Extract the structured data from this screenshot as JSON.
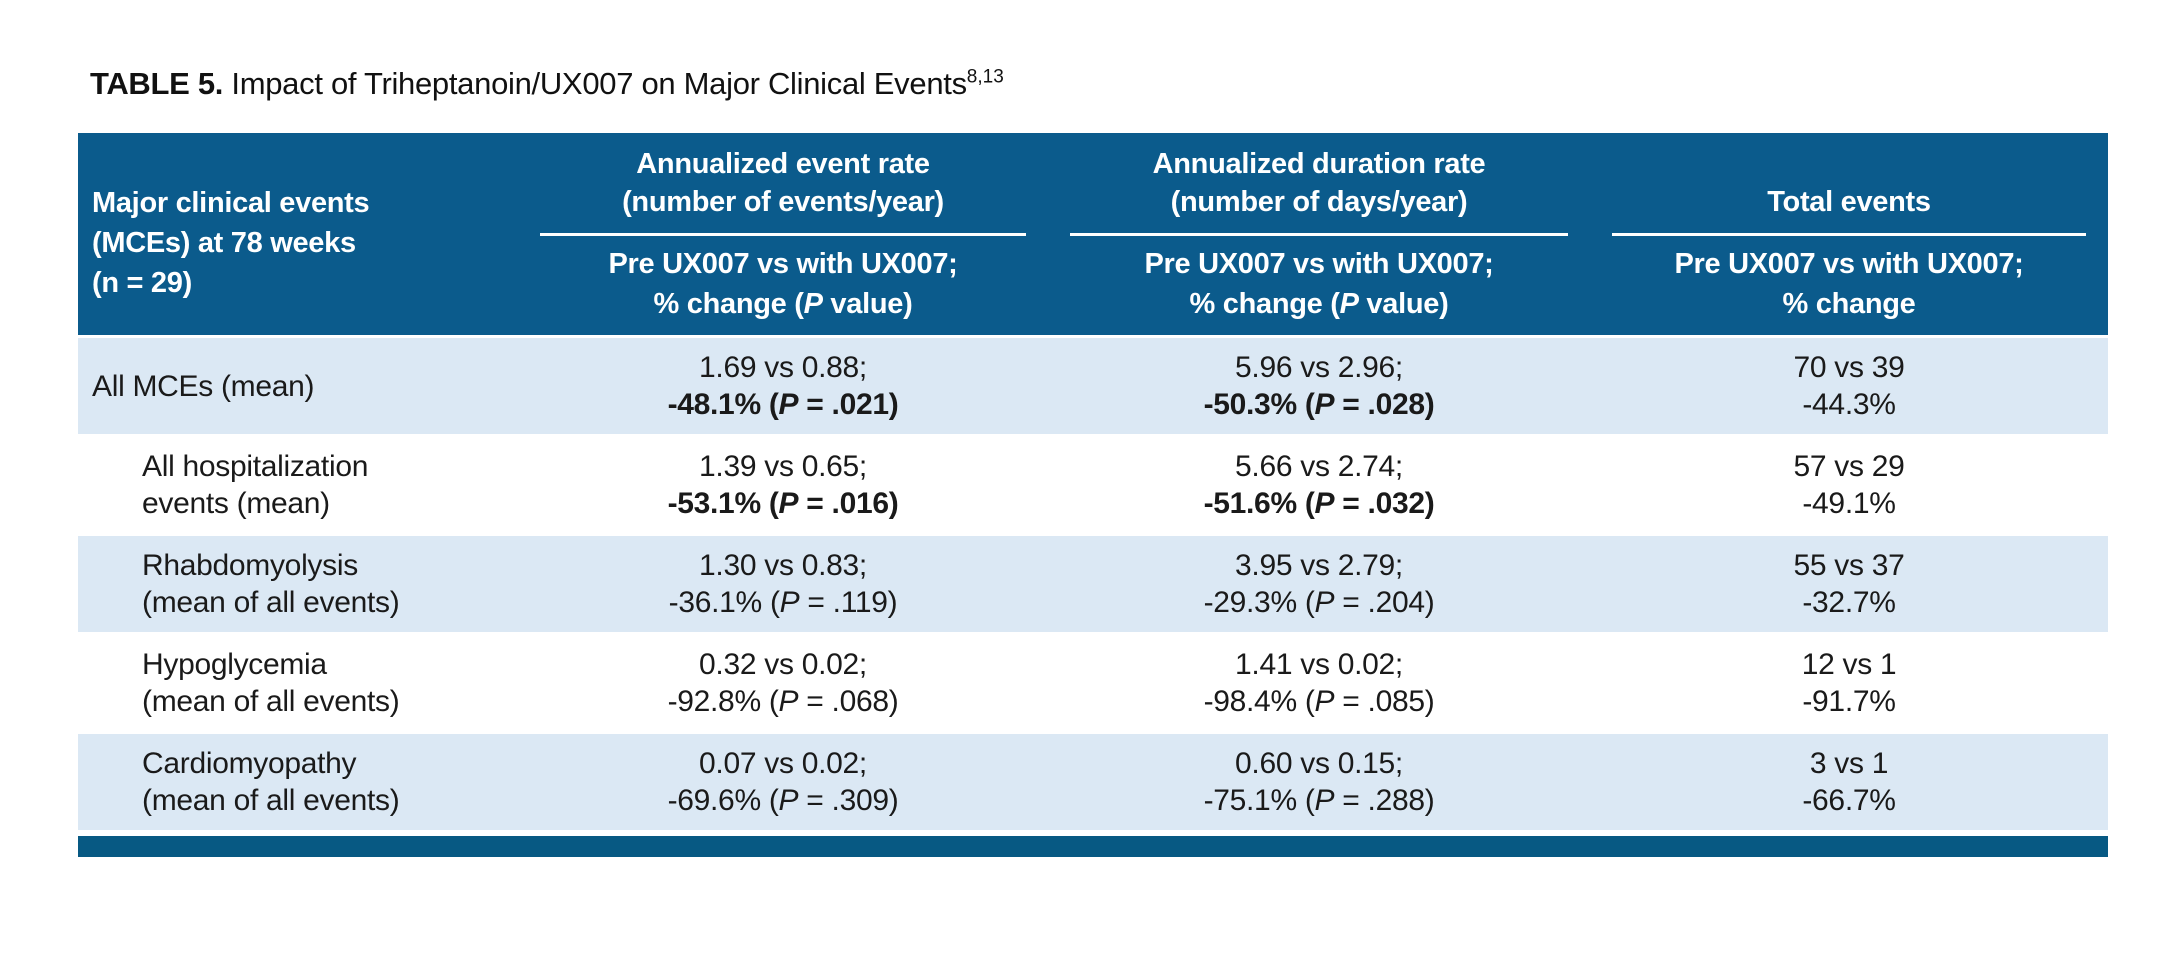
{
  "title": {
    "label": "TABLE 5.",
    "text": " Impact of Triheptanoin/UX007 on Major Clinical Events",
    "superscript": "8,13"
  },
  "colors": {
    "header_bg": "#0b5b8c",
    "row_alt_bg": "#dbe8f4",
    "bottom_bar": "#075983",
    "header_text": "#ffffff",
    "body_text": "#1a1a1a"
  },
  "header": {
    "row_header_lines": [
      "Major clinical events",
      "(MCEs) at 78 weeks",
      "(n = 29)"
    ],
    "columns": [
      {
        "group_line1": "Annualized event rate",
        "group_line2": "(number of events/year)",
        "sub_line1": "Pre UX007 vs with UX007;",
        "sub2_pre": "% change (",
        "sub2_p": "P",
        "sub2_post": " value)"
      },
      {
        "group_line1": "Annualized duration rate",
        "group_line2": "(number of days/year)",
        "sub_line1": "Pre UX007 vs with UX007;",
        "sub2_pre": "% change (",
        "sub2_p": "P",
        "sub2_post": " value)"
      },
      {
        "group_line1": "Total events",
        "group_line2": "",
        "sub_line1": "Pre UX007 vs with UX007;",
        "sub2_pre": "% change",
        "sub2_p": "",
        "sub2_post": ""
      }
    ]
  },
  "rows": [
    {
      "label_line1": "All MCEs (mean)",
      "label_line2": "",
      "event_rate": {
        "line1": "1.69 vs 0.88;",
        "pre": "-48.1% (",
        "p": "P",
        "post": " = .021)"
      },
      "duration_rate": {
        "line1": "5.96 vs 2.96;",
        "pre": "-50.3% (",
        "p": "P",
        "post": " = .028)"
      },
      "total": {
        "line1": "70 vs 39",
        "line2": "-44.3%"
      }
    },
    {
      "label_line1": "All hospitalization",
      "label_line2": "events (mean)",
      "event_rate": {
        "line1": "1.39 vs 0.65;",
        "pre": "-53.1% (",
        "p": "P",
        "post": " = .016)"
      },
      "duration_rate": {
        "line1": "5.66 vs 2.74;",
        "pre": "-51.6% (",
        "p": "P",
        "post": " = .032)"
      },
      "total": {
        "line1": "57 vs 29",
        "line2": "-49.1%"
      }
    },
    {
      "label_line1": "Rhabdomyolysis",
      "label_line2": "(mean of all events)",
      "event_rate": {
        "line1": "1.30 vs 0.83;",
        "pre": "-36.1% (",
        "p": "P",
        "post": " = .119)"
      },
      "duration_rate": {
        "line1": "3.95 vs 2.79;",
        "pre": "-29.3% (",
        "p": "P",
        "post": " = .204)"
      },
      "total": {
        "line1": "55 vs 37",
        "line2": "-32.7%"
      }
    },
    {
      "label_line1": "Hypoglycemia",
      "label_line2": "(mean of all events)",
      "event_rate": {
        "line1": "0.32 vs 0.02;",
        "pre": "-92.8% (",
        "p": "P",
        "post": " = .068)"
      },
      "duration_rate": {
        "line1": "1.41 vs 0.02;",
        "pre": "-98.4% (",
        "p": "P",
        "post": " = .085)"
      },
      "total": {
        "line1": "12 vs 1",
        "line2": "-91.7%"
      }
    },
    {
      "label_line1": "Cardiomyopathy",
      "label_line2": "(mean of all events)",
      "event_rate": {
        "line1": "0.07 vs 0.02;",
        "pre": "-69.6% (",
        "p": "P",
        "post": " = .309)"
      },
      "duration_rate": {
        "line1": "0.60 vs 0.15;",
        "pre": "-75.1% (",
        "p": "P",
        "post": " = .288)"
      },
      "total": {
        "line1": "3 vs 1",
        "line2": "-66.7%"
      }
    }
  ]
}
